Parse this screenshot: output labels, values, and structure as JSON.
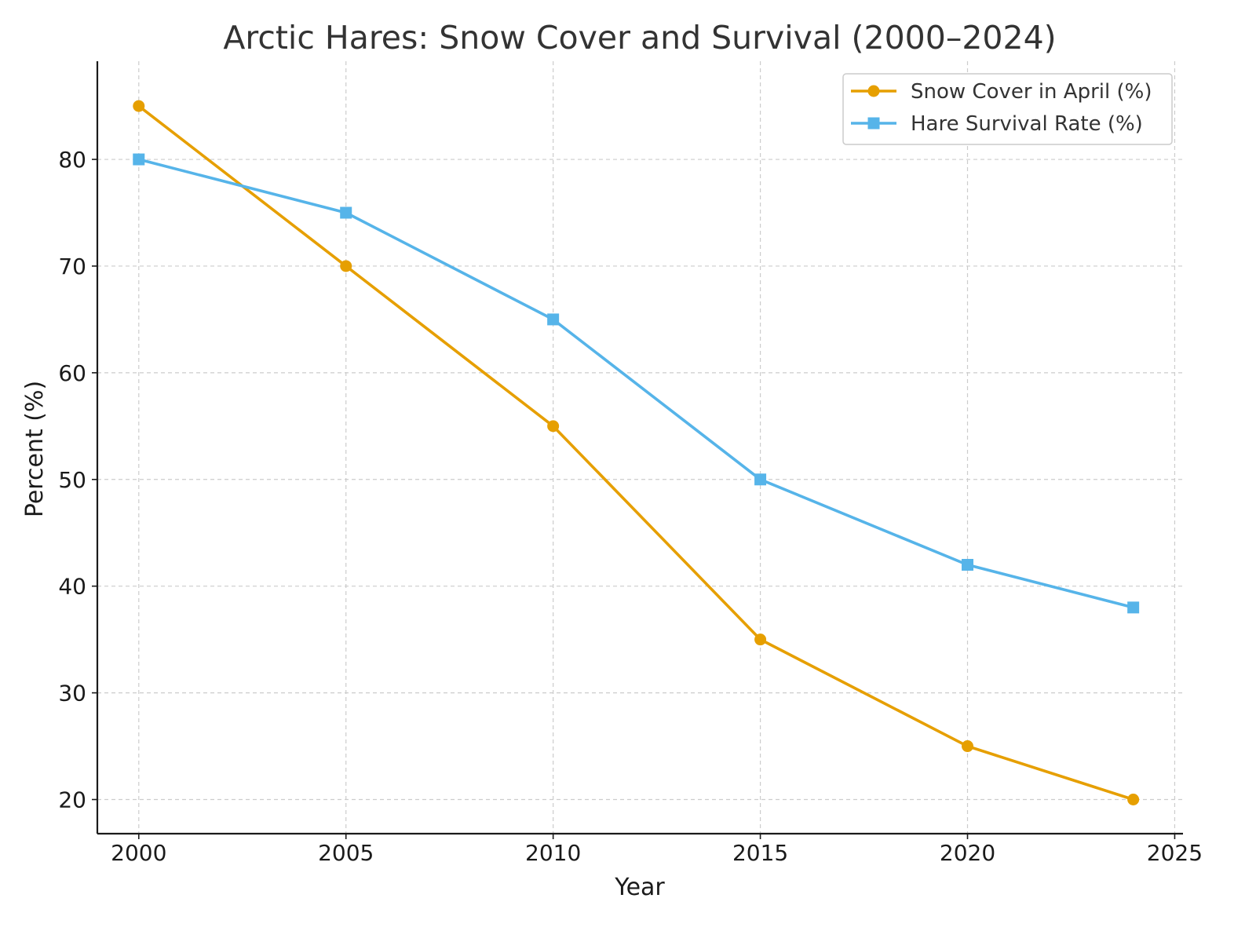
{
  "chart_data": {
    "type": "line",
    "title": "Arctic Hares: Snow Cover and Survival (2000–2024)",
    "xlabel": "Year",
    "ylabel": "Percent (%)",
    "x": [
      2000,
      2005,
      2010,
      2015,
      2020,
      2024
    ],
    "xlim": [
      1999,
      2025.2
    ],
    "ylim": [
      16.8,
      89.2
    ],
    "xticks": [
      2000,
      2005,
      2010,
      2015,
      2020,
      2025
    ],
    "yticks": [
      20,
      30,
      40,
      50,
      60,
      70,
      80
    ],
    "grid": true,
    "legend_position": "top-right",
    "series": [
      {
        "name": "Snow Cover in April (%)",
        "values": [
          85,
          70,
          55,
          35,
          25,
          20
        ],
        "color": "#E69F00",
        "marker": "circle"
      },
      {
        "name": "Hare Survival Rate (%)",
        "values": [
          80,
          75,
          65,
          50,
          42,
          38
        ],
        "color": "#56B4E9",
        "marker": "square"
      }
    ]
  }
}
